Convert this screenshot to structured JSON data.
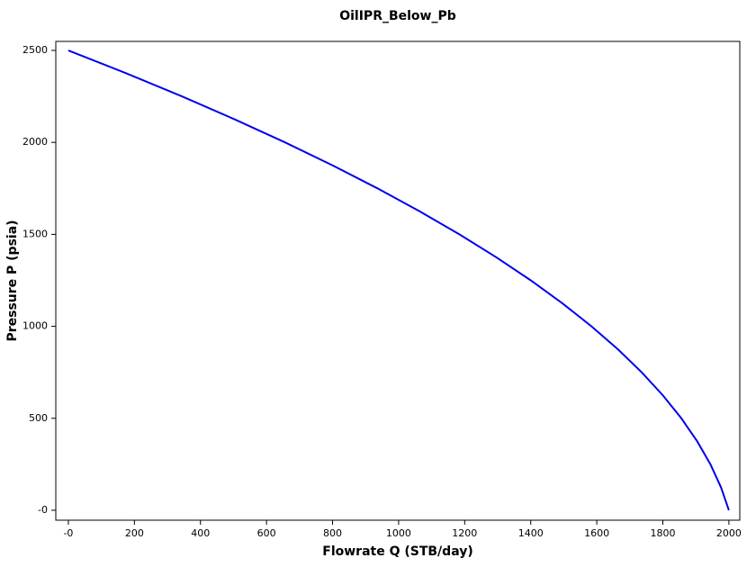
{
  "chart_data": {
    "type": "line",
    "title": "OilIPR_Below_Pb",
    "xlabel": "Flowrate Q (STB/day)",
    "ylabel": "Pressure P (psia)",
    "x": [
      0,
      176,
      344,
      504,
      656,
      800,
      936,
      1064,
      1184,
      1296,
      1400,
      1496,
      1584,
      1664,
      1736,
      1800,
      1856,
      1904,
      1944,
      1976,
      2000
    ],
    "series": [
      {
        "name": "OilIPR_Below_Pb",
        "color": "#0000ee",
        "values": [
          2500,
          2375,
          2250,
          2125,
          2000,
          1875,
          1750,
          1625,
          1500,
          1375,
          1250,
          1125,
          1000,
          875,
          750,
          625,
          500,
          375,
          250,
          125,
          0
        ]
      }
    ],
    "xlim": [
      -38,
      2033
    ],
    "ylim": [
      -54,
      2549
    ],
    "xticks": [
      {
        "value": 0,
        "label": "-0"
      },
      200,
      400,
      600,
      800,
      1000,
      1200,
      1400,
      1600,
      1800,
      2000
    ],
    "yticks": [
      {
        "value": 0,
        "label": "-0"
      },
      500,
      1000,
      1500,
      2000,
      2500
    ],
    "grid": false
  }
}
